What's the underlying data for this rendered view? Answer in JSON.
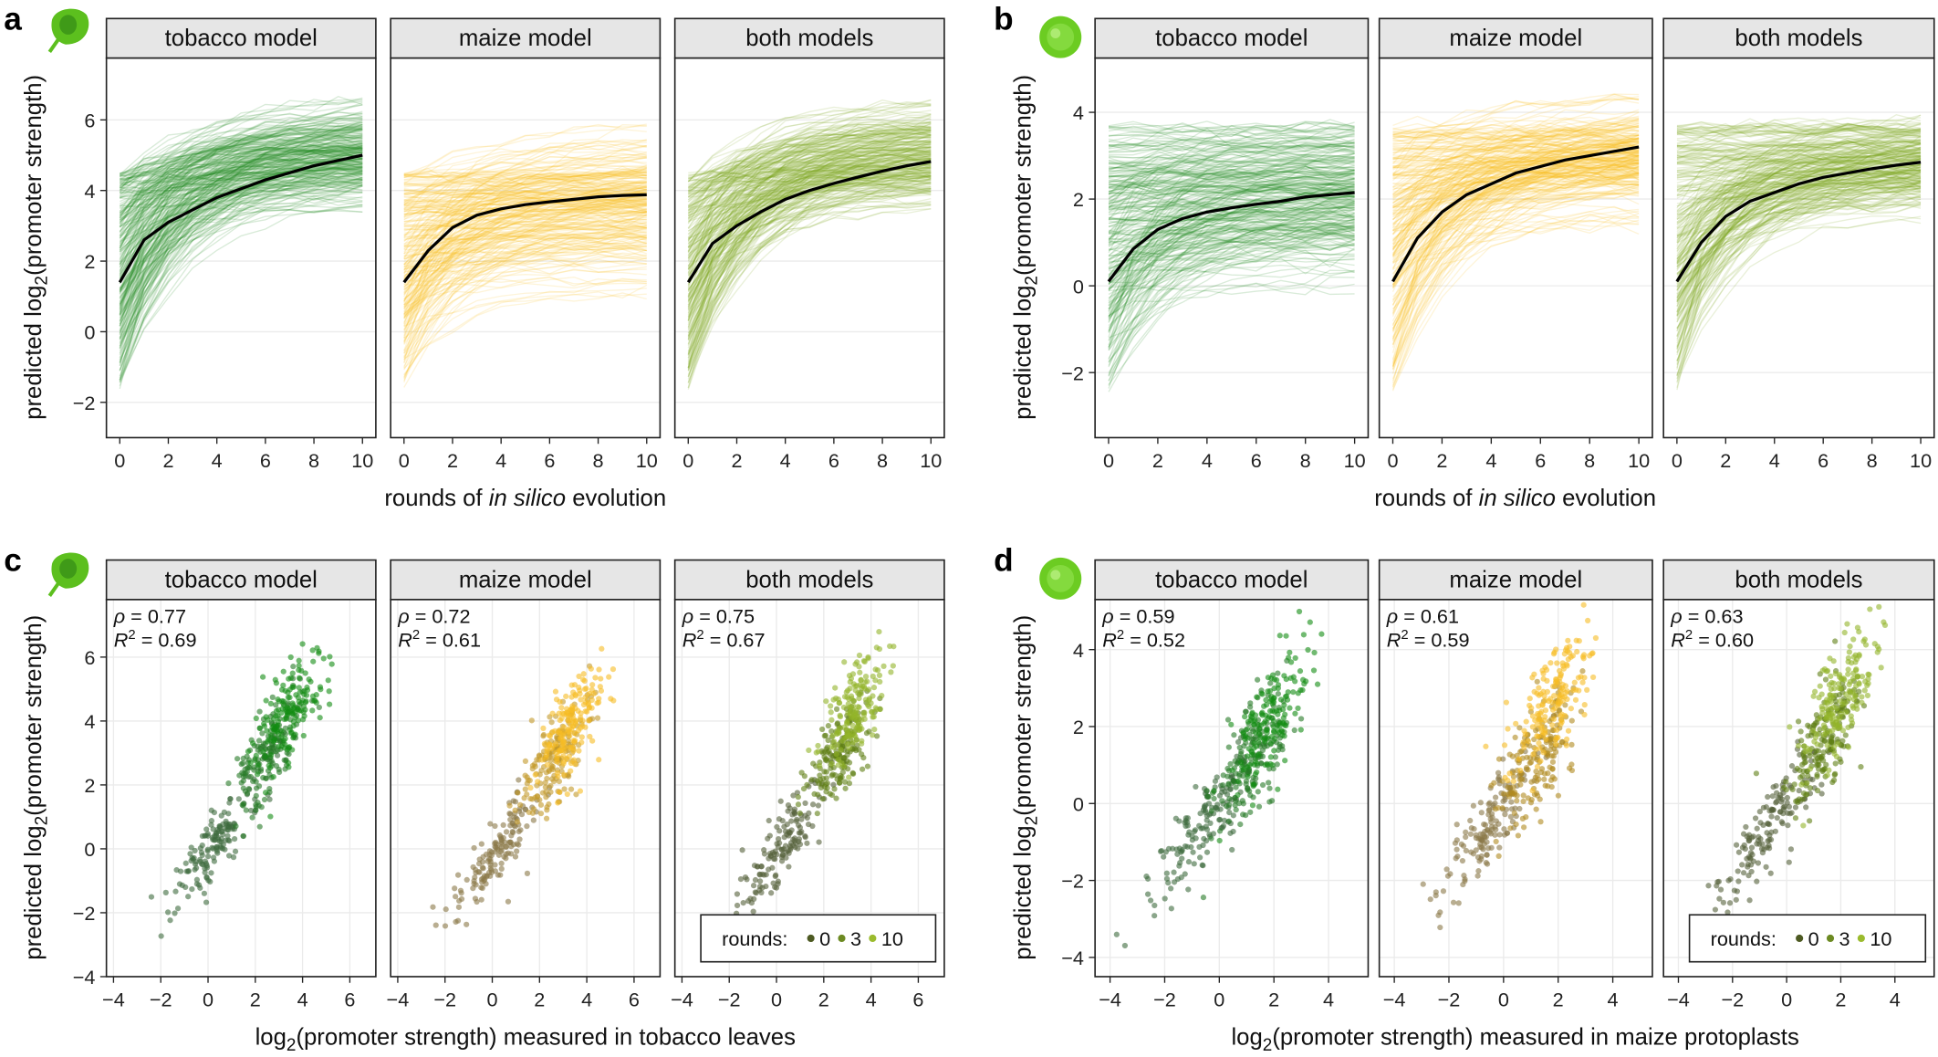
{
  "panel_labels": [
    "a",
    "b",
    "c",
    "d"
  ],
  "icons": {
    "a": "tobacco-leaf-icon",
    "b": "maize-protoplast-icon",
    "c": "tobacco-leaf-icon",
    "d": "maize-protoplast-icon"
  },
  "facet_labels": [
    "tobacco model",
    "maize model",
    "both models"
  ],
  "colors": {
    "tobacco": "#1b8a1b",
    "maize": "#f7bb1e",
    "both": "#7fa81c",
    "mean_line": "#000000",
    "rounds": {
      "0": "#4d5a22",
      "3": "#6c8a22",
      "10": "#9bbb2e"
    }
  },
  "axis_titles": {
    "y": {
      "pre": "predicted log",
      "sub": "2",
      "post": "(promoter strength)"
    },
    "x_ab": {
      "pre": "rounds of ",
      "italic": "in silico",
      "post": " evolution"
    },
    "x_c": {
      "pre": "log",
      "sub": "2",
      "post": "(promoter strength) measured in tobacco leaves"
    },
    "x_d": {
      "pre": "log",
      "sub": "2",
      "post": "(promoter strength) measured in maize protoplasts"
    }
  },
  "chart_data": [
    {
      "id": "a",
      "type": "line",
      "xlabel": "rounds of in silico evolution",
      "ylabel": "predicted log2(promoter strength)",
      "xlim": [
        -0.55,
        10.55
      ],
      "ylim": [
        -3,
        7.75
      ],
      "xticks": [
        0,
        2,
        4,
        6,
        8,
        10
      ],
      "yticks": [
        -2,
        0,
        2,
        4,
        6
      ],
      "x": [
        0,
        1,
        2,
        3,
        4,
        5,
        6,
        7,
        8,
        9,
        10
      ],
      "grid": true,
      "facets": [
        {
          "label": "tobacco model",
          "color_key": "tobacco",
          "mean": [
            1.4,
            2.6,
            3.1,
            3.45,
            3.8,
            4.05,
            4.3,
            4.5,
            4.7,
            4.85,
            5.0
          ],
          "start_range": [
            -1.7,
            4.5
          ],
          "end_range": [
            3.5,
            6.6
          ]
        },
        {
          "label": "maize model",
          "color_key": "maize",
          "mean": [
            1.4,
            2.3,
            2.95,
            3.3,
            3.48,
            3.6,
            3.68,
            3.75,
            3.82,
            3.86,
            3.88
          ],
          "start_range": [
            -1.7,
            4.5
          ],
          "end_range": [
            0.5,
            5.8
          ]
        },
        {
          "label": "both models",
          "color_key": "both",
          "mean": [
            1.4,
            2.5,
            3.0,
            3.4,
            3.75,
            4.0,
            4.2,
            4.38,
            4.55,
            4.7,
            4.82
          ],
          "start_range": [
            -1.7,
            4.5
          ],
          "end_range": [
            3.5,
            6.5
          ]
        }
      ]
    },
    {
      "id": "b",
      "type": "line",
      "xlabel": "rounds of in silico evolution",
      "ylabel": "predicted log2(promoter strength)",
      "xlim": [
        -0.55,
        10.55
      ],
      "ylim": [
        -3.5,
        5.25
      ],
      "xticks": [
        0,
        2,
        4,
        6,
        8,
        10
      ],
      "yticks": [
        -2,
        0,
        2,
        4
      ],
      "x": [
        0,
        1,
        2,
        3,
        4,
        5,
        6,
        7,
        8,
        9,
        10
      ],
      "grid": true,
      "facets": [
        {
          "label": "tobacco model",
          "color_key": "tobacco",
          "mean": [
            0.1,
            0.85,
            1.3,
            1.55,
            1.7,
            1.8,
            1.88,
            1.95,
            2.05,
            2.1,
            2.15
          ],
          "start_range": [
            -2.5,
            3.7
          ],
          "end_range": [
            -0.1,
            3.6
          ]
        },
        {
          "label": "maize model",
          "color_key": "maize",
          "mean": [
            0.1,
            1.1,
            1.7,
            2.1,
            2.35,
            2.6,
            2.75,
            2.9,
            3.0,
            3.1,
            3.2
          ],
          "start_range": [
            -2.5,
            3.7
          ],
          "end_range": [
            1.4,
            4.3
          ]
        },
        {
          "label": "both models",
          "color_key": "both",
          "mean": [
            0.1,
            1.0,
            1.6,
            1.95,
            2.15,
            2.35,
            2.5,
            2.6,
            2.7,
            2.78,
            2.85
          ],
          "start_range": [
            -2.5,
            3.7
          ],
          "end_range": [
            1.4,
            3.9
          ]
        }
      ]
    },
    {
      "id": "c",
      "type": "scatter",
      "xlabel": "log2(promoter strength) measured in tobacco leaves",
      "ylabel": "predicted log2(promoter strength)",
      "xlim": [
        -4.3,
        7.1
      ],
      "ylim": [
        -4,
        7.8
      ],
      "xticks": [
        -4,
        -2,
        0,
        2,
        4,
        6
      ],
      "yticks": [
        -4,
        -2,
        0,
        2,
        4,
        6
      ],
      "grid": true,
      "legend": {
        "title": "rounds:",
        "entries": [
          "0",
          "3",
          "10"
        ],
        "placement": "bottom-right (both models facet)"
      },
      "facets": [
        {
          "label": "tobacco model",
          "rho_label": "ρ",
          "rho": "= 0.77",
          "r2_label": "R",
          "r2_sup": "2",
          "r2": "= 0.69",
          "clusters": {
            "0": [
              0.3,
              0.2
            ],
            "3": [
              2.6,
              3.0
            ],
            "10": [
              3.4,
              4.3
            ]
          },
          "colors": {
            "0": "#3e6a3e",
            "3": "#267a26",
            "10": "#138c13"
          }
        },
        {
          "label": "maize model",
          "rho_label": "ρ",
          "rho": "= 0.72",
          "r2_label": "R",
          "r2_sup": "2",
          "r2": "= 0.61",
          "clusters": {
            "0": [
              0.3,
              0.0
            ],
            "3": [
              2.6,
              2.8
            ],
            "10": [
              3.4,
              3.9
            ]
          },
          "colors": {
            "0": "#8a7848",
            "3": "#c39a2a",
            "10": "#f6bd25"
          }
        },
        {
          "label": "both models",
          "rho_label": "ρ",
          "rho": "= 0.75",
          "r2_label": "R",
          "r2_sup": "2",
          "r2": "= 0.67",
          "clusters": {
            "0": [
              0.3,
              0.1
            ],
            "3": [
              2.6,
              3.0
            ],
            "10": [
              3.4,
              4.4
            ]
          },
          "colors": {
            "0": "#55603a",
            "3": "#5f7e14",
            "10": "#93b42a"
          }
        }
      ]
    },
    {
      "id": "d",
      "type": "scatter",
      "xlabel": "log2(promoter strength) measured in maize protoplasts",
      "ylabel": "predicted log2(promoter strength)",
      "xlim": [
        -4.55,
        5.45
      ],
      "ylim": [
        -4.5,
        5.3
      ],
      "xticks": [
        -4,
        -2,
        0,
        2,
        4
      ],
      "yticks": [
        -4,
        -2,
        0,
        2,
        4
      ],
      "grid": true,
      "legend": {
        "title": "rounds:",
        "entries": [
          "0",
          "3",
          "10"
        ],
        "placement": "bottom-right (both models facet)"
      },
      "facets": [
        {
          "label": "tobacco model",
          "rho_label": "ρ",
          "rho": "= 0.59",
          "r2_label": "R",
          "r2_sup": "2",
          "r2": "= 0.52",
          "clusters": {
            "0": [
              -0.6,
              -0.6
            ],
            "3": [
              1.2,
              1.1
            ],
            "10": [
              1.8,
              2.1
            ]
          },
          "colors": {
            "0": "#3e6a3e",
            "3": "#267a26",
            "10": "#138c13"
          }
        },
        {
          "label": "maize model",
          "rho_label": "ρ",
          "rho": "= 0.61",
          "r2_label": "R",
          "r2_sup": "2",
          "r2": "= 0.59",
          "clusters": {
            "0": [
              -0.6,
              -0.6
            ],
            "3": [
              1.3,
              1.3
            ],
            "10": [
              1.9,
              2.8
            ]
          },
          "colors": {
            "0": "#8a7848",
            "3": "#b08a20",
            "10": "#f6bd25"
          }
        },
        {
          "label": "both models",
          "rho_label": "ρ",
          "rho": "= 0.63",
          "r2_label": "R",
          "r2_sup": "2",
          "r2": "= 0.60",
          "clusters": {
            "0": [
              -0.6,
              -0.6
            ],
            "3": [
              1.3,
              1.5
            ],
            "10": [
              1.9,
              2.6
            ]
          },
          "colors": {
            "0": "#55603a",
            "3": "#5f7e14",
            "10": "#93b42a"
          }
        }
      ]
    }
  ]
}
